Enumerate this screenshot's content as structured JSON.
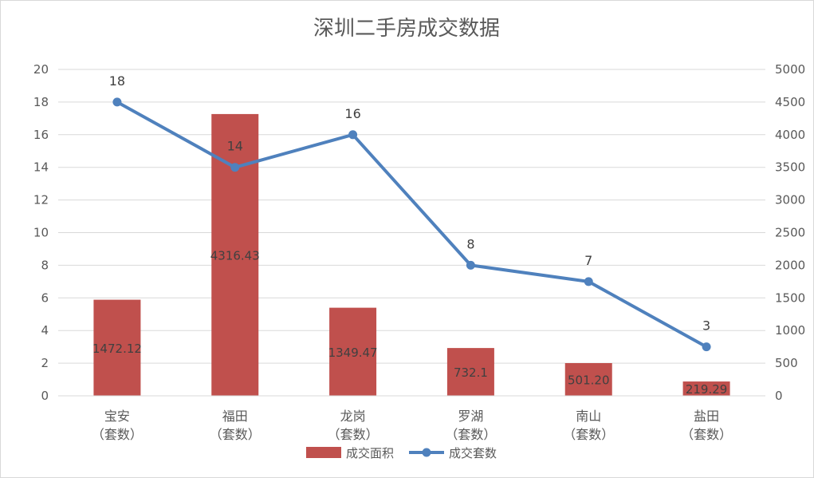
{
  "chart_data": {
    "type": "bar",
    "title": "深圳二手房成交数据",
    "categories": [
      [
        "宝安",
        "（套数）"
      ],
      [
        "福田",
        "（套数）"
      ],
      [
        "龙岗",
        "（套数）"
      ],
      [
        "罗湖",
        "（套数）"
      ],
      [
        "南山",
        "（套数）"
      ],
      [
        "盐田",
        "（套数）"
      ]
    ],
    "series": [
      {
        "name": "成交面积",
        "type": "bar",
        "axis": "right",
        "color": "#c0504d",
        "values": [
          1472.12,
          4316.43,
          1349.47,
          732.1,
          501.2,
          219.29
        ],
        "labels": [
          "1472.12",
          "4316.43",
          "1349.47",
          "732.1",
          "501.20",
          "219.29"
        ]
      },
      {
        "name": "成交套数",
        "type": "line",
        "axis": "left",
        "color": "#4f81bd",
        "values": [
          18,
          14,
          16,
          8,
          7,
          3
        ],
        "labels": [
          "18",
          "14",
          "16",
          "8",
          "7",
          "3"
        ]
      }
    ],
    "y_left": {
      "range": [
        0,
        20
      ],
      "ticks": [
        "0",
        "2",
        "4",
        "6",
        "8",
        "10",
        "12",
        "14",
        "16",
        "18",
        "20"
      ]
    },
    "y_right": {
      "range": [
        0,
        5000
      ],
      "ticks": [
        "0",
        "500",
        "1000",
        "1500",
        "2000",
        "2500",
        "3000",
        "3500",
        "4000",
        "4500",
        "5000"
      ]
    },
    "grid": true,
    "legend_position": "bottom"
  }
}
